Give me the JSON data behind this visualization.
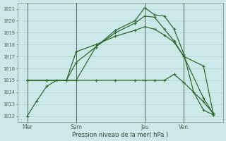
{
  "background_color": "#cce8e8",
  "grid_color": "#aacccc",
  "line_color": "#2d6a2d",
  "ylim": [
    1011.5,
    1021.5
  ],
  "yticks": [
    1012,
    1013,
    1014,
    1015,
    1016,
    1017,
    1018,
    1019,
    1020,
    1021
  ],
  "xlabel": "Pression niveau de la mer( hPa )",
  "xtick_labels": [
    "Mer",
    "Sam",
    "Jeu",
    "Ven"
  ],
  "xtick_positions": [
    0.5,
    3.0,
    6.5,
    8.5
  ],
  "vlines": [
    0.5,
    3.0,
    6.5,
    8.5
  ],
  "xlim": [
    0,
    10.5
  ],
  "lines": [
    {
      "x": [
        0.5,
        1.0,
        1.5,
        2.0,
        3.0,
        4.0,
        5.0,
        6.0,
        6.5,
        7.0,
        7.5,
        8.0,
        8.5,
        9.0,
        9.5,
        10.0
      ],
      "y": [
        1012.0,
        1013.3,
        1014.5,
        1015.0,
        1015.0,
        1017.8,
        1019.2,
        1020.0,
        1021.1,
        1020.5,
        1020.4,
        1019.3,
        1017.2,
        1014.0,
        1012.5,
        1012.1
      ]
    },
    {
      "x": [
        0.5,
        1.5,
        2.5,
        3.0,
        4.0,
        5.0,
        6.0,
        6.5,
        7.0,
        7.5,
        8.0,
        8.5,
        9.5,
        10.0
      ],
      "y": [
        1015.0,
        1015.0,
        1015.0,
        1016.5,
        1017.8,
        1019.0,
        1019.8,
        1020.4,
        1020.3,
        1019.3,
        1018.3,
        1017.0,
        1013.5,
        1012.2
      ]
    },
    {
      "x": [
        0.5,
        1.5,
        2.5,
        3.0,
        4.0,
        5.0,
        6.0,
        6.5,
        7.0,
        7.5,
        8.0,
        8.5,
        9.5,
        10.0
      ],
      "y": [
        1015.0,
        1015.0,
        1015.0,
        1017.4,
        1018.0,
        1018.7,
        1019.2,
        1019.5,
        1019.3,
        1018.8,
        1018.2,
        1017.0,
        1016.2,
        1012.2
      ]
    },
    {
      "x": [
        0.5,
        1.5,
        2.5,
        3.0,
        4.0,
        5.0,
        6.0,
        6.5,
        7.0,
        7.5,
        8.0,
        8.5,
        9.5,
        10.0
      ],
      "y": [
        1015.0,
        1015.0,
        1015.0,
        1015.0,
        1015.0,
        1015.0,
        1015.0,
        1015.0,
        1015.0,
        1015.0,
        1015.5,
        1014.8,
        1013.2,
        1012.2
      ]
    }
  ]
}
